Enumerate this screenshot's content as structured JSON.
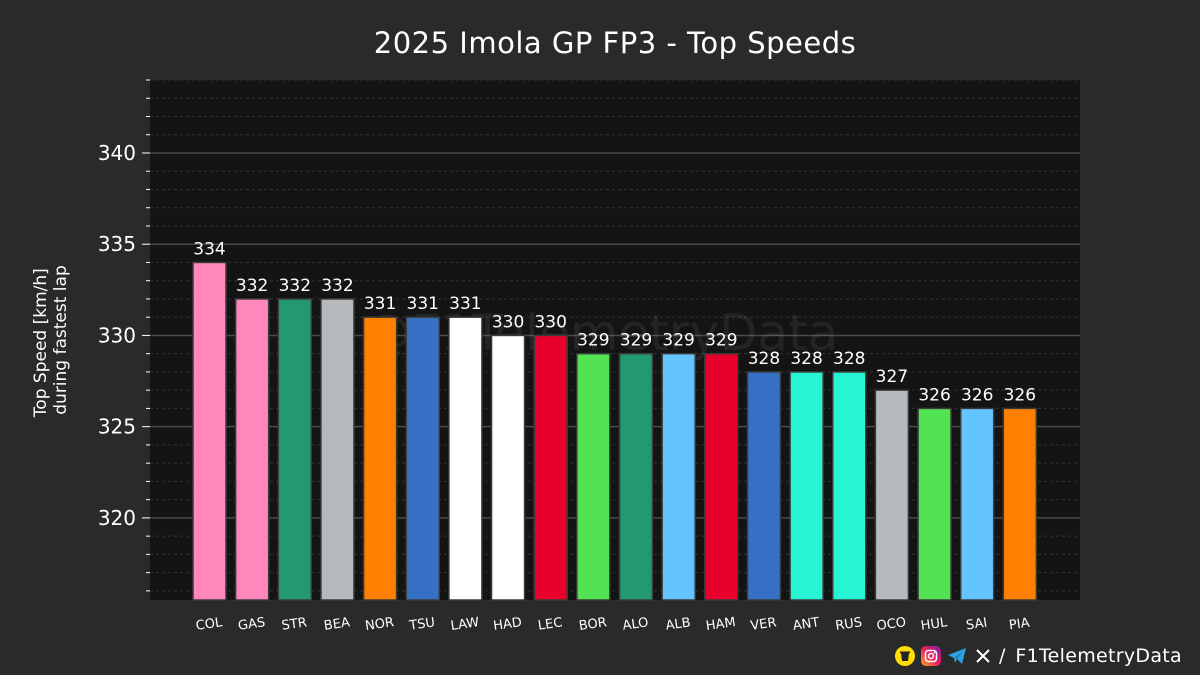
{
  "chart_data": {
    "type": "bar",
    "title": "2025 Imola GP FP3 - Top Speeds",
    "ylabel": "Top Speed [km/h]",
    "ylabel2": "during fastest lap",
    "xlabel": "",
    "ylim": [
      315.5,
      344.0
    ],
    "yticks": [
      320,
      325,
      330,
      335,
      340
    ],
    "grid": true,
    "watermark": "@F1TelemetryData",
    "categories": [
      "COL",
      "GAS",
      "STR",
      "BEA",
      "NOR",
      "TSU",
      "LAW",
      "HAD",
      "LEC",
      "BOR",
      "ALO",
      "ALB",
      "HAM",
      "VER",
      "ANT",
      "RUS",
      "OCO",
      "HUL",
      "SAI",
      "PIA"
    ],
    "values": [
      334,
      332,
      332,
      332,
      331,
      331,
      331,
      330,
      330,
      329,
      329,
      329,
      329,
      328,
      328,
      328,
      327,
      326,
      326,
      326
    ],
    "colors": [
      "#ff87bc",
      "#ff87bc",
      "#229971",
      "#b6babd",
      "#ff8000",
      "#3671c6",
      "#ffffff",
      "#ffffff",
      "#e8002d",
      "#52e252",
      "#229971",
      "#64c4ff",
      "#e8002d",
      "#3671c6",
      "#27f4d2",
      "#27f4d2",
      "#b6babd",
      "#52e252",
      "#64c4ff",
      "#ff8000"
    ]
  },
  "footer": {
    "separator": "/",
    "handle": "F1TelemetryData",
    "icons": [
      "coffee-icon",
      "instagram-icon",
      "telegram-icon",
      "x-icon"
    ]
  }
}
